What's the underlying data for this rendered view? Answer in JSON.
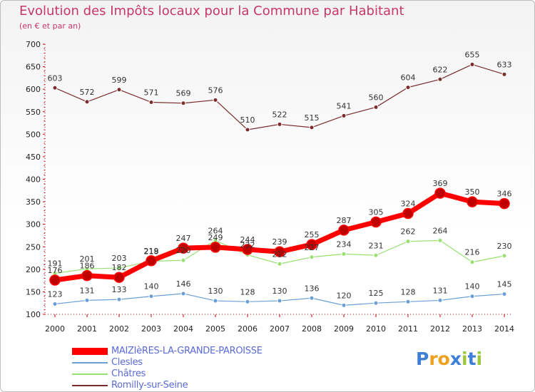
{
  "title": "Evolution des Impôts locaux pour la Commune par Habitant",
  "subtitle": "(en € et par an)",
  "logo": {
    "text": "Proxiti",
    "letters": [
      "P",
      "r",
      "o",
      "x",
      "i",
      "t",
      "i"
    ]
  },
  "colors": {
    "maizieres": "#ff0000",
    "maizieres_marker": "#c00000",
    "clesles": "#6a9fd4",
    "chatres": "#98e070",
    "romilly": "#7b2c2c",
    "logo": [
      "#3d7fd6",
      "#f0a020",
      "#f0a020",
      "#3d7fd6",
      "#9ac83a",
      "#3d7fd6",
      "#9ac83a"
    ]
  },
  "chart_data": {
    "type": "line",
    "title": "Evolution des Impôts locaux pour la Commune par Habitant",
    "subtitle": "(en € et par an)",
    "xlabel": "",
    "ylabel": "",
    "ylim": [
      100,
      700
    ],
    "yticks": [
      100,
      150,
      200,
      250,
      300,
      350,
      400,
      450,
      500,
      550,
      600,
      650,
      700
    ],
    "grid": false,
    "legend_position": "bottom-left",
    "categories": [
      "2000",
      "2001",
      "2002",
      "2003",
      "2004",
      "2005",
      "2006",
      "2007",
      "2008",
      "2009",
      "2010",
      "2011",
      "2012",
      "2013",
      "2014"
    ],
    "series": [
      {
        "name": "MAIZIèRES-LA-GRANDE-PAROISSE",
        "key": "maizieres",
        "values": [
          176,
          186,
          182,
          219,
          247,
          249,
          244,
          239,
          255,
          287,
          305,
          324,
          369,
          350,
          346
        ]
      },
      {
        "name": "Clesles",
        "key": "clesles",
        "values": [
          123,
          131,
          133,
          140,
          146,
          130,
          128,
          130,
          136,
          120,
          125,
          128,
          131,
          140,
          145
        ]
      },
      {
        "name": "Châtres",
        "key": "chatres",
        "values": [
          191,
          201,
          203,
          218,
          220,
          264,
          232,
          212,
          227,
          234,
          231,
          262,
          264,
          216,
          230
        ]
      },
      {
        "name": "Romilly-sur-Seine",
        "key": "romilly",
        "values": [
          603,
          572,
          599,
          571,
          569,
          576,
          510,
          522,
          515,
          541,
          560,
          604,
          622,
          655,
          633
        ]
      }
    ]
  }
}
